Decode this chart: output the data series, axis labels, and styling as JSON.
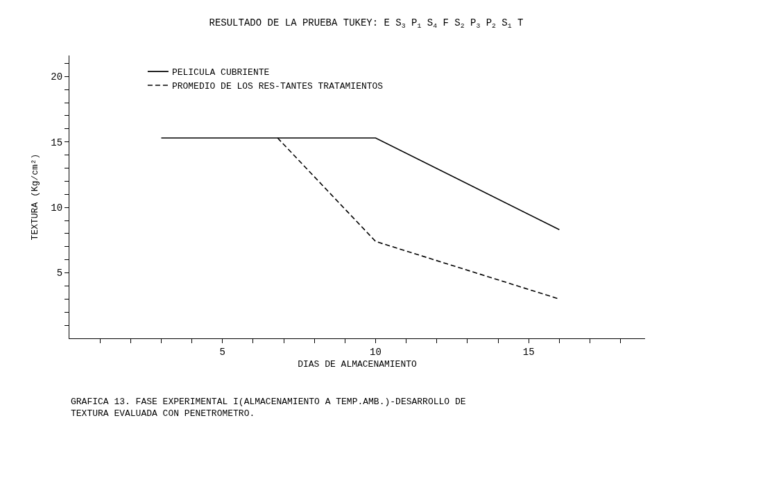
{
  "chart_data": {
    "type": "line",
    "title": "RESULTADO DE LA PRUEBA TUKEY: E S$_{3}$ P$_{1}$ S$_{4}$ F S$_{2}$ P$_{3}$ P$_{2}$ S$_{1}$ T",
    "xlabel": "DIAS DE ALMACENAMIENTO",
    "ylabel": "TEXTURA (Kg/cm²)",
    "annotations": [
      "GRAFICA 13. FASE EXPERIMENTAL I(ALMACENAMIENTO A TEMP.AMB.)-DESARROLLO DE TEXTURA EVALUADA CON PENETROMETRO."
    ],
    "series": [
      {
        "name": "PELICULA CUBRIENTE",
        "color": "#000000",
        "line_style": "solid",
        "x": [
          3,
          10,
          16
        ],
        "values": [
          15.3,
          15.3,
          8.3
        ]
      },
      {
        "name": "PROMEDIO DE LOS RES-TANTES TRATAMIENTOS",
        "color": "#000000",
        "line_style": "dashed",
        "x": [
          6.8,
          10,
          16
        ],
        "values": [
          15.3,
          7.4,
          3.0
        ]
      }
    ],
    "xlim": [
      0,
      18.8
    ],
    "ylim": [
      0,
      21.6
    ],
    "xticks": [
      {
        "value": 1,
        "label": null
      },
      {
        "value": 2,
        "label": null
      },
      {
        "value": 3,
        "label": null
      },
      {
        "value": 4,
        "label": null
      },
      5,
      {
        "value": 6,
        "label": null
      },
      {
        "value": 7,
        "label": null
      },
      {
        "value": 8,
        "label": null
      },
      {
        "value": 9,
        "label": null
      },
      10,
      {
        "value": 11,
        "label": null
      },
      {
        "value": 12,
        "label": null
      },
      {
        "value": 13,
        "label": null
      },
      {
        "value": 14,
        "label": null
      },
      15,
      {
        "value": 16,
        "label": null
      },
      {
        "value": 17,
        "label": null
      },
      {
        "value": 18,
        "label": null
      }
    ],
    "yticks": [
      {
        "value": 1,
        "label": null
      },
      {
        "value": 2,
        "label": null
      },
      {
        "value": 3,
        "label": null
      },
      {
        "value": 4,
        "label": null
      },
      5,
      {
        "value": 6,
        "label": null
      },
      {
        "value": 7,
        "label": null
      },
      {
        "value": 8,
        "label": null
      },
      {
        "value": 9,
        "label": null
      },
      10,
      {
        "value": 11,
        "label": null
      },
      {
        "value": 12,
        "label": null
      },
      {
        "value": 13,
        "label": null
      },
      {
        "value": 14,
        "label": null
      },
      15,
      {
        "value": 16,
        "label": null
      },
      {
        "value": 17,
        "label": null
      },
      {
        "value": 18,
        "label": null
      },
      {
        "value": 19,
        "label": null
      },
      20,
      {
        "value": 21,
        "label": null
      }
    ],
    "grid": false,
    "legend": "top left",
    "marker": "none"
  }
}
